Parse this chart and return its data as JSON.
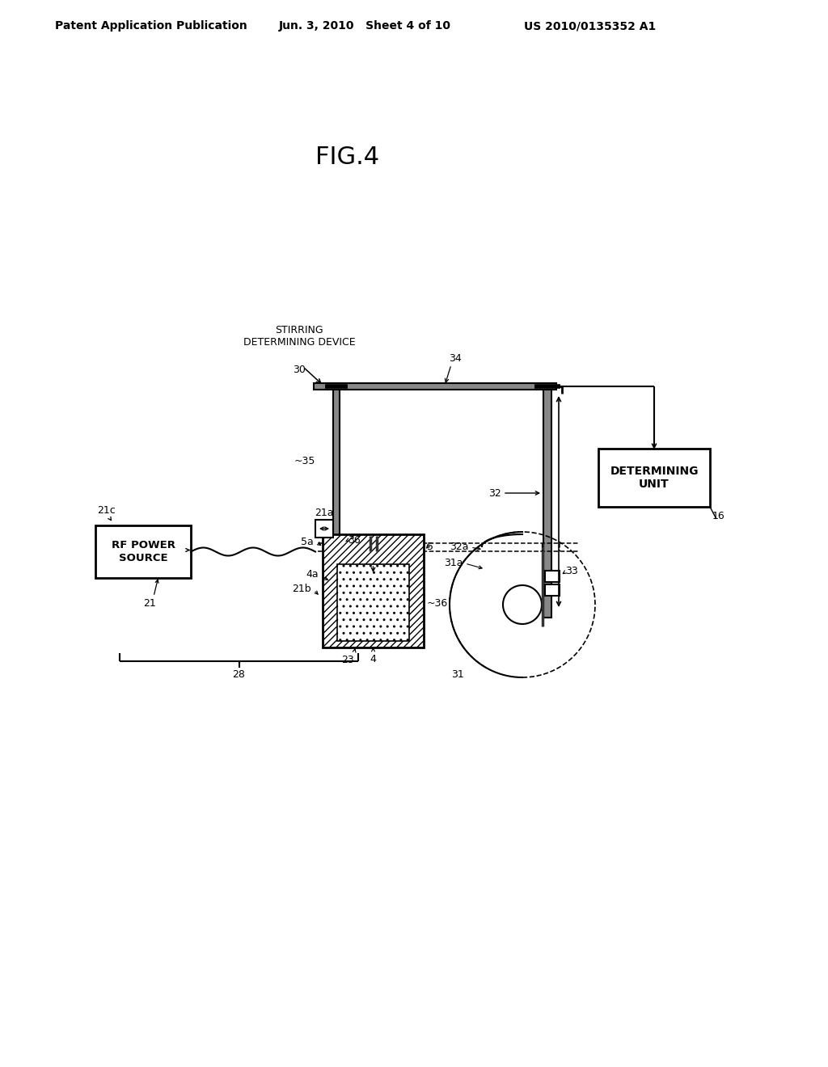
{
  "bg_color": "#ffffff",
  "header_left": "Patent Application Publication",
  "header_mid": "Jun. 3, 2010   Sheet 4 of 10",
  "header_right": "US 2010/0135352 A1",
  "fig_label": "FIG.4",
  "det_unit_text": "DETERMINING\nUNIT",
  "rf_source_text": "RF POWER\nSOURCE"
}
